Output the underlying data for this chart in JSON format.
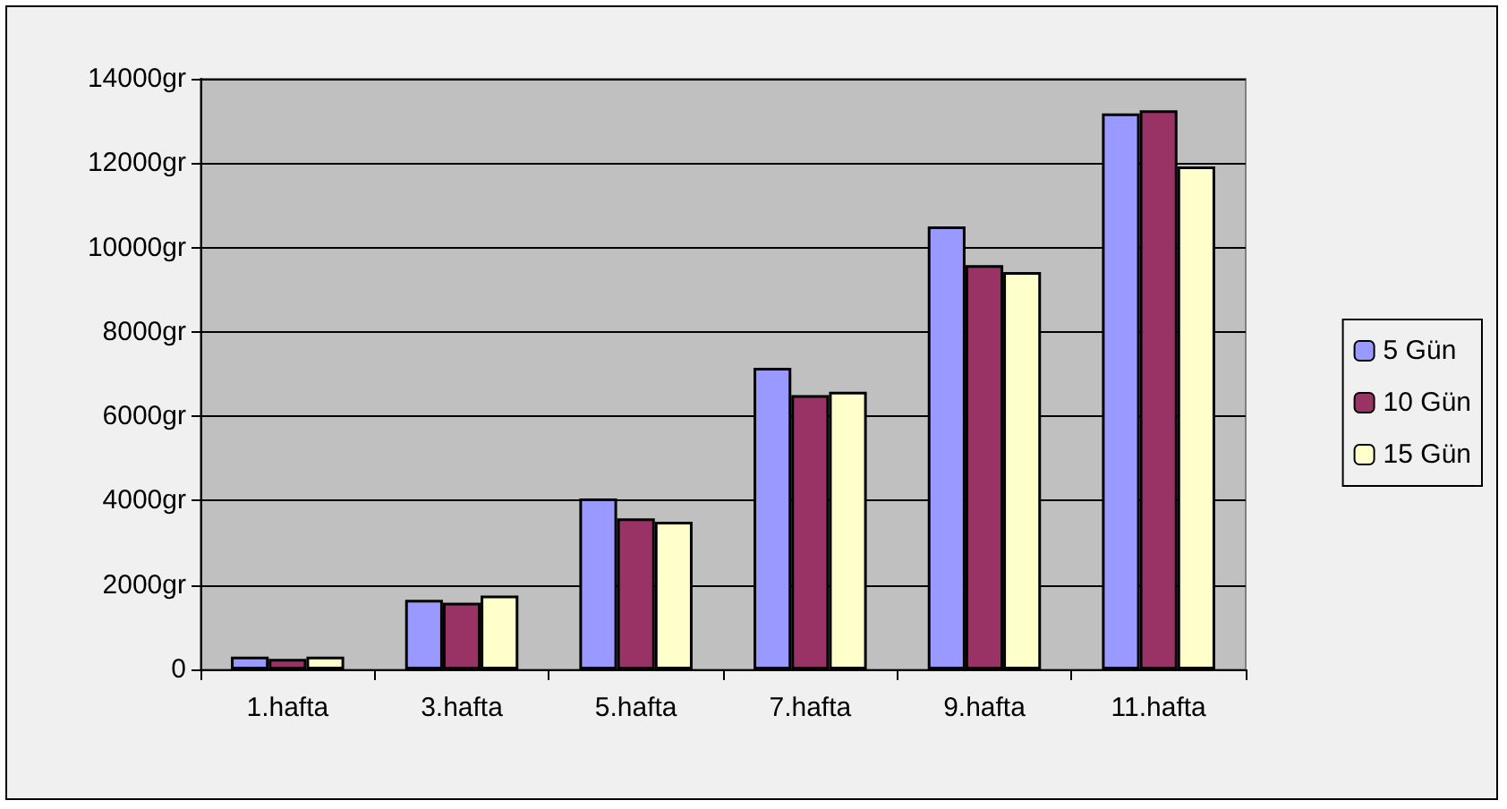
{
  "chart_data": {
    "type": "bar",
    "categories": [
      "1.hafta",
      "3.hafta",
      "5.hafta",
      "7.hafta",
      "9.hafta",
      "11.hafta"
    ],
    "series": [
      {
        "name": "5 Gün",
        "color": "#9999ff",
        "values": [
          300,
          1650,
          4050,
          7150,
          10500,
          13180
        ]
      },
      {
        "name": "10 Gün",
        "color": "#993366",
        "values": [
          250,
          1580,
          3580,
          6500,
          9580,
          13250
        ]
      },
      {
        "name": "15 Gün",
        "color": "#ffffcc",
        "values": [
          300,
          1750,
          3500,
          6580,
          9420,
          11920
        ]
      }
    ],
    "ylim": [
      0,
      14000
    ],
    "yticks": [
      0,
      {
        "value": 2000,
        "label": "2000gr"
      },
      {
        "value": 4000,
        "label": "4000gr"
      },
      {
        "value": 6000,
        "label": "6000gr"
      },
      {
        "value": 8000,
        "label": "8000gr"
      },
      {
        "value": 10000,
        "label": "10000gr"
      },
      {
        "value": 12000,
        "label": "12000gr"
      },
      {
        "value": 14000,
        "label": "14000gr"
      }
    ],
    "grid": "y",
    "legend": "right"
  }
}
